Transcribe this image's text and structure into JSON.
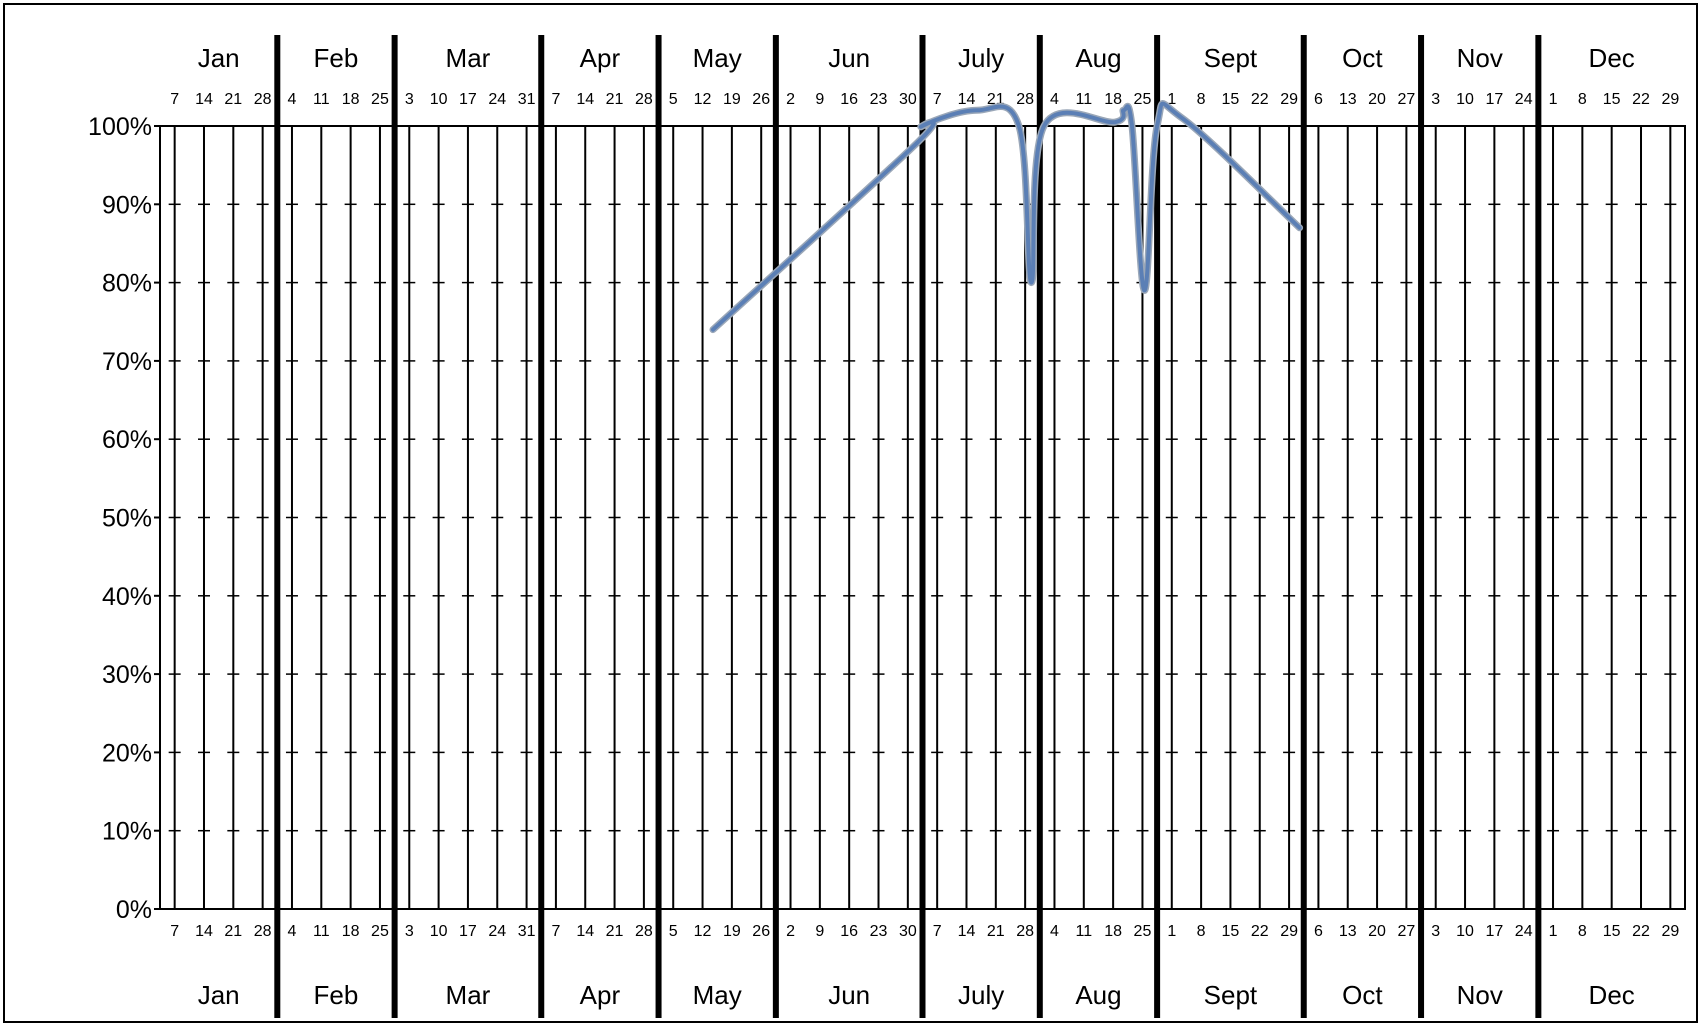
{
  "chart_data": {
    "type": "line",
    "title": "",
    "xlabel": "",
    "ylabel": "",
    "ylim": [
      0,
      100
    ],
    "grid": true,
    "legend": "none",
    "y_tick_labels": [
      "0%",
      "10%",
      "20%",
      "30%",
      "40%",
      "50%",
      "60%",
      "70%",
      "80%",
      "90%",
      "100%"
    ],
    "x_range_weeks": [
      0,
      52
    ],
    "months": [
      {
        "label": "Jan",
        "ticks": [
          "7",
          "14",
          "21",
          "28"
        ],
        "ticks_top": [
          "7",
          "14",
          "21",
          "28"
        ],
        "start": 0,
        "end": 4
      },
      {
        "label": "Feb",
        "ticks": [
          "4",
          "11",
          "18",
          "25"
        ],
        "ticks_top": [
          "4",
          "11",
          "18",
          "25"
        ],
        "start": 4,
        "end": 8
      },
      {
        "label": "Mar",
        "ticks": [
          "3",
          "10",
          "17",
          "24",
          "31"
        ],
        "ticks_top": [
          "3",
          "10",
          "17",
          "24",
          "31"
        ],
        "start": 8,
        "end": 13
      },
      {
        "label": "Apr",
        "ticks": [
          "7",
          "14",
          "21",
          "28"
        ],
        "ticks_top": [
          "7",
          "14",
          "21",
          "28"
        ],
        "start": 13,
        "end": 17
      },
      {
        "label": "May",
        "ticks": [
          "5",
          "12",
          "19",
          "26"
        ],
        "ticks_top": [
          "5",
          "12",
          "19",
          "26"
        ],
        "start": 17,
        "end": 21
      },
      {
        "label": "Jun",
        "ticks": [
          "2",
          "9",
          "16",
          "23",
          "30"
        ],
        "ticks_top": [
          "2",
          "9",
          "16",
          "23",
          "30"
        ],
        "start": 21,
        "end": 26
      },
      {
        "label": "July",
        "ticks": [
          "7",
          "14",
          "21",
          "28"
        ],
        "ticks_top": [
          "7",
          "14",
          "21",
          "28"
        ],
        "start": 26,
        "end": 30
      },
      {
        "label": "Aug",
        "ticks": [
          "4",
          "11",
          "18",
          "25"
        ],
        "ticks_top": [
          "4",
          "11",
          "18",
          "25"
        ],
        "start": 30,
        "end": 34
      },
      {
        "label": "Sept",
        "ticks": [
          "1",
          "8",
          "15",
          "22",
          "29"
        ],
        "ticks_top": [
          "1",
          "8",
          "15",
          "22",
          "29"
        ],
        "start": 34,
        "end": 39
      },
      {
        "label": "Oct",
        "ticks": [
          "6",
          "13",
          "20",
          "27"
        ],
        "ticks_top": [
          "6",
          "13",
          "20",
          "27"
        ],
        "start": 39,
        "end": 43
      },
      {
        "label": "Nov",
        "ticks": [
          "3",
          "10",
          "17",
          "24"
        ],
        "ticks_top": [
          "3",
          "10",
          "17",
          "24"
        ],
        "start": 43,
        "end": 47
      },
      {
        "label": "Dec",
        "ticks": [
          "1",
          "8",
          "15",
          "22",
          "29"
        ],
        "ticks_top": [
          "1",
          "8",
          "15",
          "22",
          "29"
        ],
        "start": 47,
        "end": 52
      }
    ],
    "series": [
      {
        "color": "#5b7fb5",
        "points": [
          {
            "x": "May 12",
            "y": 74
          },
          {
            "x": "Jun 30",
            "y": 98
          },
          {
            "x": "Jul 1",
            "y": 100
          },
          {
            "x": "Jul 14",
            "y": 102
          },
          {
            "x": "Jul 24",
            "y": 100
          },
          {
            "x": "Jul 27",
            "y": 80
          },
          {
            "x": "Jul 30",
            "y": 100
          },
          {
            "x": "Aug 16",
            "y": 100.5
          },
          {
            "x": "Aug 18",
            "y": 102
          },
          {
            "x": "Aug 20",
            "y": 100
          },
          {
            "x": "Aug 23",
            "y": 79
          },
          {
            "x": "Aug 26",
            "y": 100
          },
          {
            "x": "Sep 1",
            "y": 101
          },
          {
            "x": "Sep 29",
            "y": 87
          }
        ]
      }
    ],
    "line_color": "#5b7fb5"
  }
}
